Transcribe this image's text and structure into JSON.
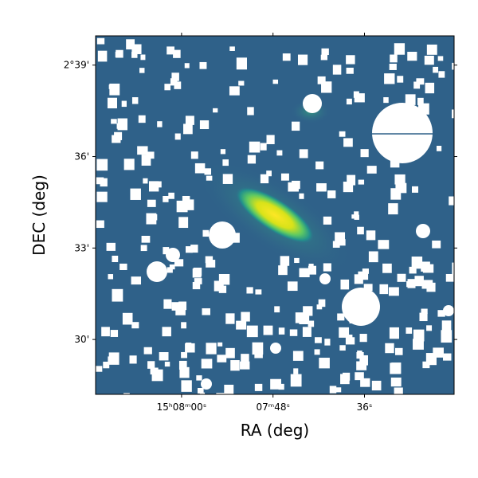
{
  "chart_data": {
    "type": "image",
    "xlabel": "RA (deg)",
    "ylabel": "DEC (deg)",
    "xlim": [
      227.047,
      226.851
    ],
    "ylim": [
      2.47,
      2.666
    ],
    "xticks": [
      {
        "value": 227.0,
        "label": "15ʰ08ᵐ00ˢ"
      },
      {
        "value": 226.95,
        "label": "07ᵐ48ˢ"
      },
      {
        "value": 226.9,
        "label": "36ˢ"
      }
    ],
    "yticks": [
      {
        "value": 2.65,
        "label": "2°39'"
      },
      {
        "value": 2.6,
        "label": "36'"
      },
      {
        "value": 2.55,
        "label": "33'"
      },
      {
        "value": 2.5,
        "label": "30'"
      }
    ]
  }
}
